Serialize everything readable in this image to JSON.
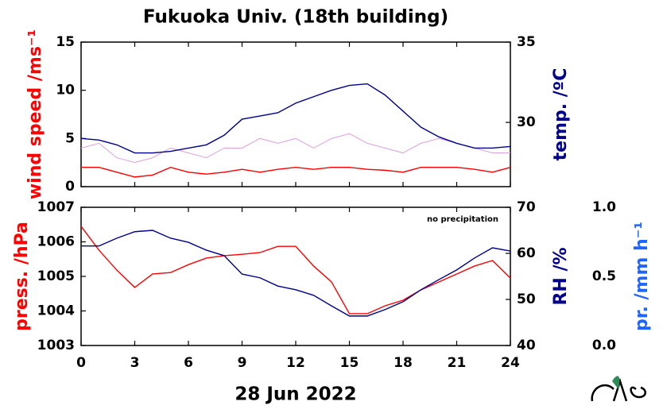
{
  "chart_data": [
    {
      "type": "line",
      "title": "Fukuoka Univ. (18th building)",
      "ylabel": "wind speed /ms⁻¹",
      "ylabel_color": "#ff0000",
      "y2label": "temp. /ºC",
      "y2label_color": "#00008b",
      "x": [
        0,
        1,
        2,
        3,
        4,
        5,
        6,
        7,
        8,
        9,
        10,
        11,
        12,
        13,
        14,
        15,
        16,
        17,
        18,
        19,
        20,
        21,
        22,
        23,
        24
      ],
      "xlim": [
        0,
        24
      ],
      "xticks": [
        0,
        3,
        6,
        9,
        12,
        15,
        18,
        21,
        24
      ],
      "ylim": [
        0,
        15
      ],
      "yticks": [
        0,
        5,
        10,
        15
      ],
      "y2lim": [
        26,
        35
      ],
      "y2ticks": [
        30,
        35
      ],
      "series": [
        {
          "color": "#dda0dd",
          "values": [
            4,
            4.5,
            3,
            2.5,
            3,
            4,
            3.5,
            3,
            4,
            4,
            5,
            4.5,
            5,
            4,
            5,
            5.5,
            4.5,
            4,
            3.5,
            4.5,
            5,
            4.5,
            4,
            3.5,
            3.5
          ]
        },
        {
          "color": "#ff0000",
          "values": [
            2,
            2,
            1.5,
            1,
            1.2,
            2,
            1.5,
            1.3,
            1.5,
            1.8,
            1.5,
            1.8,
            2,
            1.8,
            2,
            2,
            1.8,
            1.7,
            1.5,
            2,
            2,
            2,
            1.8,
            1.5,
            2
          ]
        },
        {
          "color": "#00008b",
          "axis": "y2",
          "values": [
            29,
            28.9,
            28.6,
            28.1,
            28.1,
            28.2,
            28.4,
            28.6,
            29.2,
            30.2,
            30.4,
            30.6,
            31.2,
            31.6,
            32,
            32.3,
            32.4,
            31.7,
            30.7,
            29.7,
            29.1,
            28.7,
            28.4,
            28.4,
            28.5
          ]
        }
      ]
    },
    {
      "type": "line",
      "xlabel": "28 Jun 2022",
      "ylabel": "press. /hPa",
      "ylabel_color": "#ff0000",
      "y2label": "RH /%",
      "y2label_color": "#00008b",
      "y3label": "pr. /mm h⁻¹",
      "y3label_color": "#1e64ff",
      "annotation": "no precipitation",
      "x": [
        0,
        1,
        2,
        3,
        4,
        5,
        6,
        7,
        8,
        9,
        10,
        11,
        12,
        13,
        14,
        15,
        16,
        17,
        18,
        19,
        20,
        21,
        22,
        23,
        24
      ],
      "xlim": [
        0,
        24
      ],
      "xticks": [
        0,
        3,
        6,
        9,
        12,
        15,
        18,
        21,
        24
      ],
      "ylim": [
        1003,
        1007
      ],
      "yticks": [
        1003,
        1004,
        1005,
        1006,
        1007
      ],
      "y2lim": [
        40,
        70
      ],
      "y2ticks": [
        40,
        50,
        60,
        70
      ],
      "y3lim": [
        0,
        1
      ],
      "y3ticks": [
        {
          "value": 0,
          "label": "0.0"
        },
        {
          "value": 0.5,
          "label": "0.5"
        },
        {
          "value": 1,
          "label": "1.0"
        }
      ],
      "series": [
        {
          "color": "#ff0000",
          "values": [
            1006.45,
            1005.76,
            1005.18,
            1004.68,
            1005.07,
            1005.11,
            1005.34,
            1005.53,
            1005.6,
            1005.64,
            1005.69,
            1005.87,
            1005.87,
            1005.3,
            1004.84,
            1003.92,
            1003.92,
            1004.15,
            1004.31,
            1004.61,
            1004.84,
            1005.07,
            1005.3,
            1005.46,
            1004.95
          ]
        },
        {
          "color": "#00008b",
          "axis": "y2",
          "values": [
            61.6,
            61.6,
            63.3,
            64.7,
            65,
            63.3,
            62.4,
            60.7,
            59.5,
            55.5,
            54.7,
            52.9,
            52.1,
            50.9,
            48.6,
            46.4,
            46.4,
            47.8,
            49.5,
            52.1,
            54.3,
            56.4,
            59,
            61.2,
            60.5
          ]
        }
      ]
    }
  ]
}
